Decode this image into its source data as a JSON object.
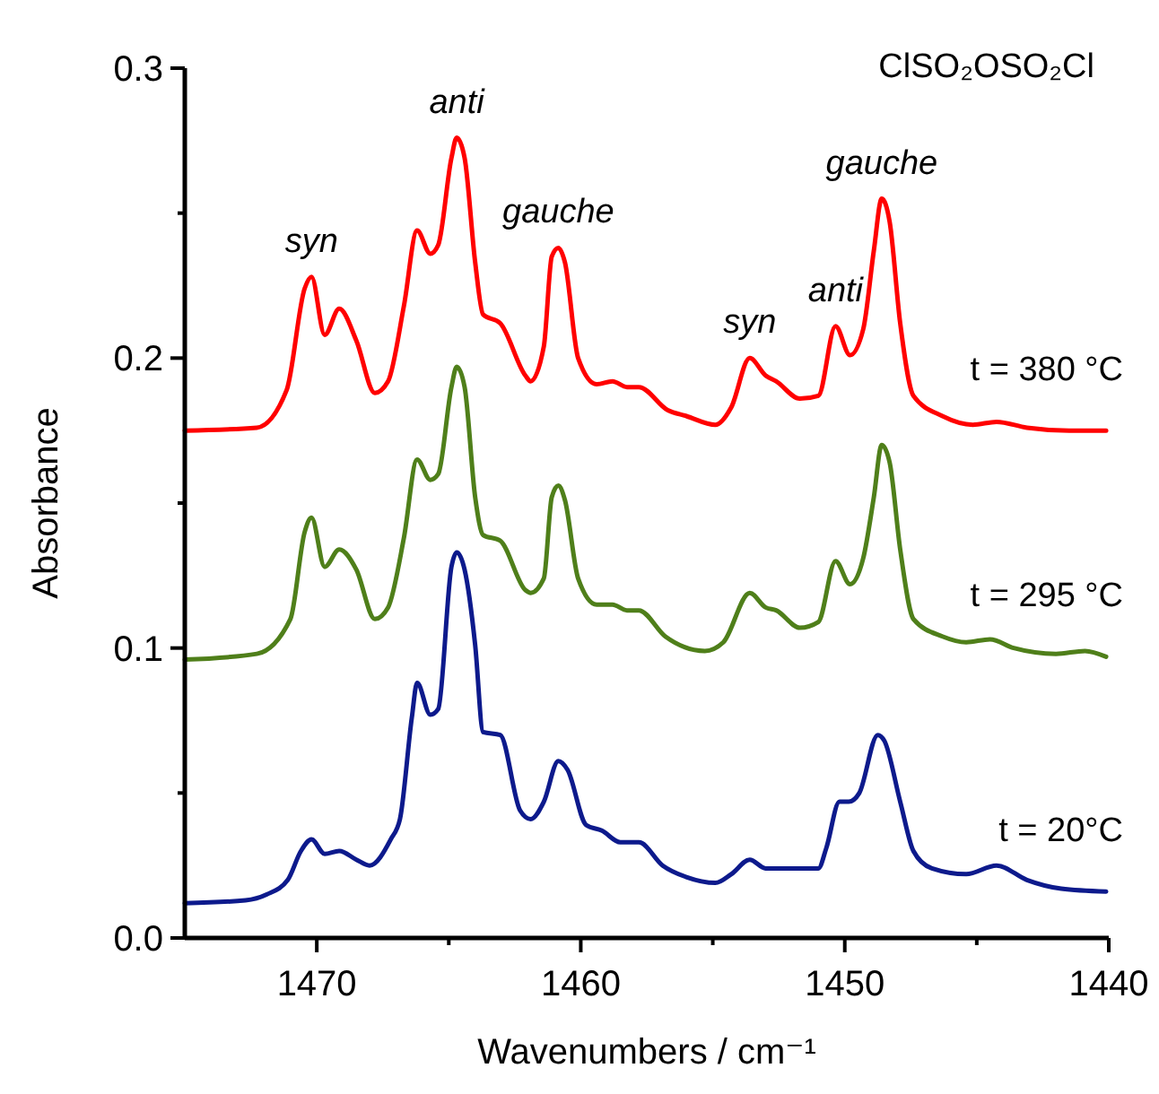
{
  "chart_data": {
    "type": "line",
    "title": "ClSO₂OSO₂Cl",
    "xlabel": "Wavenumbers / cm⁻¹",
    "ylabel": "Absorbance",
    "xlim": [
      1475,
      1440
    ],
    "ylim": [
      0,
      0.3
    ],
    "xticks": [
      1470,
      {
        "value": 1465,
        "label": null
      },
      1460,
      {
        "value": 1455,
        "label": null
      },
      1450,
      {
        "value": 1445,
        "label": null
      },
      1440
    ],
    "yticks": [
      {
        "value": 0,
        "label": "0.0"
      },
      {
        "value": 0.05,
        "label": null
      },
      {
        "value": 0.1,
        "label": "0.1"
      },
      {
        "value": 0.15,
        "label": null
      },
      {
        "value": 0.2,
        "label": "0.2"
      },
      {
        "value": 0.25,
        "label": null
      },
      {
        "value": 0.3,
        "label": "0.3"
      }
    ],
    "grid": false,
    "marker": "none",
    "line_style": "solid",
    "annotations": [
      {
        "text": "syn",
        "x": 1470.2,
        "y": 0.228
      },
      {
        "text": "anti",
        "x": 1464.7,
        "y": 0.276
      },
      {
        "text": "gauche",
        "x": 1460.85,
        "y": 0.238
      },
      {
        "text": "syn",
        "x": 1453.6,
        "y": 0.2
      },
      {
        "text": "anti",
        "x": 1450.35,
        "y": 0.211
      },
      {
        "text": "gauche",
        "x": 1448.6,
        "y": 0.255
      }
    ],
    "series": [
      {
        "name": "t = 380 °C",
        "color": "#ff0000",
        "x": [
          1475,
          1472.27,
          1471.14,
          1470.46,
          1470.2,
          1469.7,
          1469.15,
          1468.5,
          1467.8,
          1467.3,
          1466.7,
          1466.2,
          1465.7,
          1465.4,
          1464.9,
          1464.7,
          1464.4,
          1464.0,
          1463.7,
          1463.05,
          1462.1,
          1461.9,
          1461.4,
          1461.1,
          1460.85,
          1460.6,
          1460.1,
          1459.4,
          1458.8,
          1458.25,
          1457.8,
          1456.7,
          1456.0,
          1454.9,
          1454.3,
          1453.6,
          1453.0,
          1452.6,
          1451.7,
          1451.0,
          1450.35,
          1449.8,
          1449.3,
          1448.9,
          1448.6,
          1448.3,
          1447.9,
          1447.4,
          1446.3,
          1445.15,
          1444.25,
          1443.1,
          1441.5,
          1440.1
        ],
        "values": [
          0.175,
          0.176,
          0.189,
          0.224,
          0.228,
          0.208,
          0.217,
          0.206,
          0.188,
          0.192,
          0.218,
          0.244,
          0.236,
          0.239,
          0.269,
          0.276,
          0.269,
          0.233,
          0.215,
          0.212,
          0.194,
          0.192,
          0.204,
          0.235,
          0.238,
          0.233,
          0.2,
          0.191,
          0.192,
          0.19,
          0.19,
          0.182,
          0.18,
          0.177,
          0.183,
          0.2,
          0.194,
          0.192,
          0.186,
          0.187,
          0.211,
          0.201,
          0.21,
          0.237,
          0.255,
          0.247,
          0.212,
          0.187,
          0.18,
          0.177,
          0.178,
          0.176,
          0.175,
          0.175
        ]
      },
      {
        "name": "t = 295 °C",
        "color": "#4f7f1a",
        "x": [
          1475,
          1472.27,
          1471.0,
          1470.46,
          1470.2,
          1469.7,
          1469.15,
          1468.5,
          1467.8,
          1467.3,
          1466.7,
          1466.2,
          1465.7,
          1465.4,
          1464.9,
          1464.7,
          1464.4,
          1464.0,
          1463.7,
          1463.05,
          1462.1,
          1461.9,
          1461.4,
          1461.1,
          1460.85,
          1460.6,
          1460.1,
          1459.4,
          1458.8,
          1458.25,
          1457.8,
          1456.8,
          1455.3,
          1454.6,
          1453.6,
          1453.0,
          1452.6,
          1451.7,
          1451.0,
          1450.35,
          1449.8,
          1449.3,
          1448.9,
          1448.6,
          1448.3,
          1447.9,
          1447.4,
          1446.3,
          1445.4,
          1444.5,
          1443.6,
          1442.0,
          1440.9,
          1440.1
        ],
        "values": [
          0.096,
          0.098,
          0.11,
          0.14,
          0.145,
          0.128,
          0.134,
          0.127,
          0.11,
          0.114,
          0.138,
          0.165,
          0.158,
          0.16,
          0.19,
          0.197,
          0.19,
          0.152,
          0.139,
          0.137,
          0.12,
          0.119,
          0.124,
          0.152,
          0.156,
          0.151,
          0.124,
          0.115,
          0.115,
          0.113,
          0.113,
          0.104,
          0.099,
          0.102,
          0.119,
          0.114,
          0.113,
          0.107,
          0.109,
          0.13,
          0.122,
          0.131,
          0.152,
          0.17,
          0.164,
          0.134,
          0.11,
          0.104,
          0.102,
          0.103,
          0.1,
          0.098,
          0.099,
          0.097
        ]
      },
      {
        "name": "t = 20°C",
        "color": "#0d1a8c",
        "x": [
          1475,
          1472.7,
          1471.9,
          1471.1,
          1470.6,
          1470.2,
          1469.7,
          1469.15,
          1468.5,
          1468.0,
          1467.2,
          1466.85,
          1466.4,
          1466.2,
          1465.7,
          1465.4,
          1464.9,
          1464.7,
          1464.4,
          1464.0,
          1463.7,
          1463.05,
          1462.3,
          1461.9,
          1461.4,
          1460.85,
          1460.5,
          1459.8,
          1459.2,
          1458.5,
          1457.8,
          1456.9,
          1456.0,
          1454.9,
          1454.3,
          1453.6,
          1453.0,
          1451.0,
          1450.7,
          1450.2,
          1449.85,
          1449.45,
          1448.75,
          1448.5,
          1447.9,
          1447.4,
          1446.7,
          1445.4,
          1444.25,
          1443.1,
          1441.8,
          1440.1
        ],
        "values": [
          0.012,
          0.013,
          0.015,
          0.02,
          0.03,
          0.034,
          0.029,
          0.03,
          0.027,
          0.025,
          0.034,
          0.041,
          0.076,
          0.088,
          0.077,
          0.079,
          0.128,
          0.133,
          0.127,
          0.101,
          0.071,
          0.07,
          0.044,
          0.041,
          0.047,
          0.061,
          0.058,
          0.039,
          0.037,
          0.033,
          0.033,
          0.025,
          0.021,
          0.019,
          0.022,
          0.027,
          0.024,
          0.024,
          0.031,
          0.047,
          0.047,
          0.05,
          0.07,
          0.068,
          0.047,
          0.03,
          0.024,
          0.022,
          0.025,
          0.02,
          0.017,
          0.016
        ]
      }
    ]
  }
}
